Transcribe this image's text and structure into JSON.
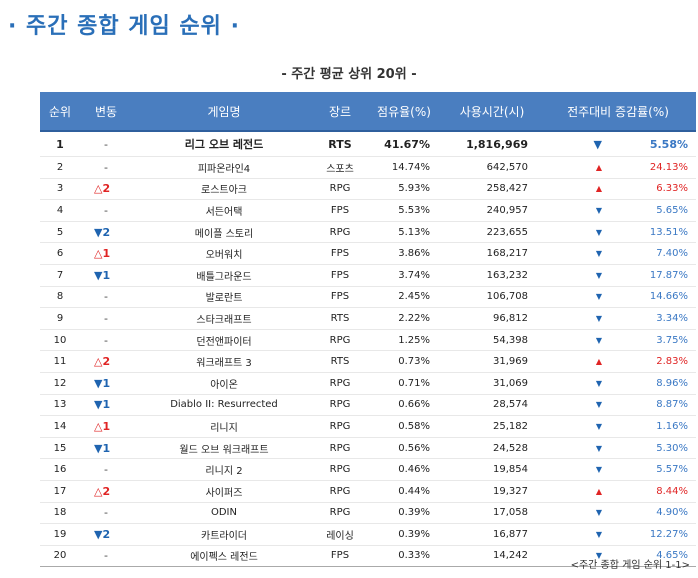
{
  "page": {
    "title": "· 주간 종합 게임 순위 ·",
    "subtitle": "- 주간 평균 상위 20위 -",
    "caption": "<주간 종합 게임 순위 1-1>"
  },
  "table": {
    "headers": [
      "순위",
      "변동",
      "게임명",
      "장르",
      "점유율(%)",
      "사용시간(시)",
      "전주대비 증감률(%)"
    ],
    "rows": [
      {
        "rank": "1",
        "change": "-",
        "change_dir": "same",
        "name": "리그 오브 레전드",
        "genre": "RTS",
        "share": "41.67%",
        "hours": "1,816,969",
        "trend": "down",
        "pct": "5.58%"
      },
      {
        "rank": "2",
        "change": "-",
        "change_dir": "same",
        "name": "피파온라인4",
        "genre": "스포츠",
        "share": "14.74%",
        "hours": "642,570",
        "trend": "up",
        "pct": "24.13%"
      },
      {
        "rank": "3",
        "change": "△2",
        "change_dir": "up",
        "name": "로스트아크",
        "genre": "RPG",
        "share": "5.93%",
        "hours": "258,427",
        "trend": "up",
        "pct": "6.33%"
      },
      {
        "rank": "4",
        "change": "-",
        "change_dir": "same",
        "name": "서든어택",
        "genre": "FPS",
        "share": "5.53%",
        "hours": "240,957",
        "trend": "down",
        "pct": "5.65%"
      },
      {
        "rank": "5",
        "change": "▼2",
        "change_dir": "down",
        "name": "메이플 스토리",
        "genre": "RPG",
        "share": "5.13%",
        "hours": "223,655",
        "trend": "down",
        "pct": "13.51%"
      },
      {
        "rank": "6",
        "change": "△1",
        "change_dir": "up",
        "name": "오버워치",
        "genre": "FPS",
        "share": "3.86%",
        "hours": "168,217",
        "trend": "down",
        "pct": "7.40%"
      },
      {
        "rank": "7",
        "change": "▼1",
        "change_dir": "down",
        "name": "배틀그라운드",
        "genre": "FPS",
        "share": "3.74%",
        "hours": "163,232",
        "trend": "down",
        "pct": "17.87%"
      },
      {
        "rank": "8",
        "change": "-",
        "change_dir": "same",
        "name": "발로란트",
        "genre": "FPS",
        "share": "2.45%",
        "hours": "106,708",
        "trend": "down",
        "pct": "14.66%"
      },
      {
        "rank": "9",
        "change": "-",
        "change_dir": "same",
        "name": "스타크래프트",
        "genre": "RTS",
        "share": "2.22%",
        "hours": "96,812",
        "trend": "down",
        "pct": "3.34%"
      },
      {
        "rank": "10",
        "change": "-",
        "change_dir": "same",
        "name": "던전앤파이터",
        "genre": "RPG",
        "share": "1.25%",
        "hours": "54,398",
        "trend": "down",
        "pct": "3.75%"
      },
      {
        "rank": "11",
        "change": "△2",
        "change_dir": "up",
        "name": "워크래프트 3",
        "genre": "RTS",
        "share": "0.73%",
        "hours": "31,969",
        "trend": "up",
        "pct": "2.83%"
      },
      {
        "rank": "12",
        "change": "▼1",
        "change_dir": "down",
        "name": "아이온",
        "genre": "RPG",
        "share": "0.71%",
        "hours": "31,069",
        "trend": "down",
        "pct": "8.96%"
      },
      {
        "rank": "13",
        "change": "▼1",
        "change_dir": "down",
        "name": "Diablo II: Resurrected",
        "genre": "RPG",
        "share": "0.66%",
        "hours": "28,574",
        "trend": "down",
        "pct": "8.87%"
      },
      {
        "rank": "14",
        "change": "△1",
        "change_dir": "up",
        "name": "리니지",
        "genre": "RPG",
        "share": "0.58%",
        "hours": "25,182",
        "trend": "down",
        "pct": "1.16%"
      },
      {
        "rank": "15",
        "change": "▼1",
        "change_dir": "down",
        "name": "월드 오브 워크래프트",
        "genre": "RPG",
        "share": "0.56%",
        "hours": "24,528",
        "trend": "down",
        "pct": "5.30%"
      },
      {
        "rank": "16",
        "change": "-",
        "change_dir": "same",
        "name": "리니지 2",
        "genre": "RPG",
        "share": "0.46%",
        "hours": "19,854",
        "trend": "down",
        "pct": "5.57%"
      },
      {
        "rank": "17",
        "change": "△2",
        "change_dir": "up",
        "name": "사이퍼즈",
        "genre": "RPG",
        "share": "0.44%",
        "hours": "19,327",
        "trend": "up",
        "pct": "8.44%"
      },
      {
        "rank": "18",
        "change": "-",
        "change_dir": "same",
        "name": "ODIN",
        "genre": "RPG",
        "share": "0.39%",
        "hours": "17,058",
        "trend": "down",
        "pct": "4.90%"
      },
      {
        "rank": "19",
        "change": "▼2",
        "change_dir": "down",
        "name": "카트라이더",
        "genre": "레이싱",
        "share": "0.39%",
        "hours": "16,877",
        "trend": "down",
        "pct": "12.27%"
      },
      {
        "rank": "20",
        "change": "-",
        "change_dir": "same",
        "name": "에이펙스 레전드",
        "genre": "FPS",
        "share": "0.33%",
        "hours": "14,242",
        "trend": "down",
        "pct": "4.65%"
      }
    ]
  },
  "colors": {
    "title": "#2a6fb8",
    "header_bg": "#4a7ec0",
    "up": "#e02424",
    "down": "#1f64b0"
  }
}
